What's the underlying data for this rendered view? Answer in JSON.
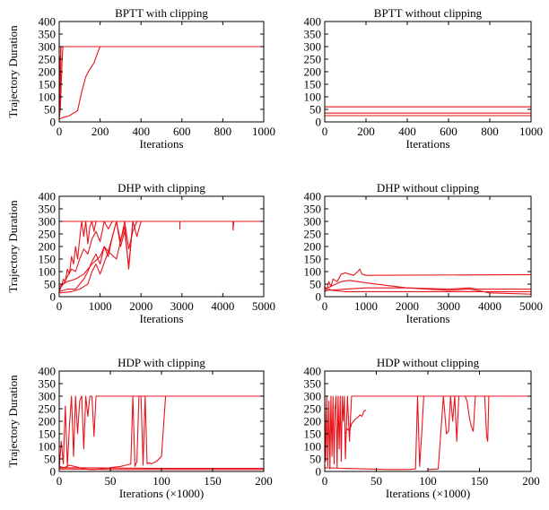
{
  "series_color": "#e8141b",
  "chart_data": [
    {
      "type": "line",
      "title": "BPTT with clipping",
      "xlabel": "Iterations",
      "ylabel": "Trajectory Duration",
      "xlim": [
        0,
        1000
      ],
      "ylim": [
        0,
        400
      ],
      "xticks": [
        "0",
        "200",
        "400",
        "600",
        "800",
        "1000"
      ],
      "yticks": [
        "0",
        "50",
        "100",
        "150",
        "200",
        "250",
        "300",
        "350",
        "400"
      ],
      "series": [
        {
          "x": [
            0,
            2,
            4,
            6,
            8,
            10,
            1000
          ],
          "y": [
            10,
            140,
            60,
            220,
            300,
            300,
            300
          ]
        },
        {
          "x": [
            0,
            4,
            6,
            8,
            10,
            12,
            1000
          ],
          "y": [
            20,
            260,
            100,
            300,
            300,
            300,
            300
          ]
        },
        {
          "x": [
            0,
            6,
            10,
            14,
            18,
            22,
            1000
          ],
          "y": [
            10,
            60,
            160,
            240,
            300,
            300,
            300
          ]
        },
        {
          "x": [
            0,
            10,
            50,
            90,
            110,
            130,
            150,
            170,
            190,
            200,
            1000
          ],
          "y": [
            10,
            15,
            25,
            45,
            120,
            180,
            210,
            235,
            280,
            300,
            300
          ]
        }
      ]
    },
    {
      "type": "line",
      "title": "BPTT without clipping",
      "xlabel": "Iterations",
      "ylabel": "",
      "xlim": [
        0,
        1000
      ],
      "ylim": [
        0,
        400
      ],
      "xticks": [
        "0",
        "200",
        "400",
        "600",
        "800",
        "1000"
      ],
      "yticks": [
        "0",
        "50",
        "100",
        "150",
        "200",
        "250",
        "300",
        "350",
        "400"
      ],
      "series": [
        {
          "x": [
            0,
            1000
          ],
          "y": [
            60,
            60
          ]
        },
        {
          "x": [
            0,
            1000
          ],
          "y": [
            35,
            35
          ]
        },
        {
          "x": [
            0,
            1000
          ],
          "y": [
            25,
            25
          ]
        }
      ]
    },
    {
      "type": "line",
      "title": "DHP with clipping",
      "xlabel": "Iterations",
      "ylabel": "Trajectory Duration",
      "xlim": [
        0,
        5000
      ],
      "ylim": [
        0,
        400
      ],
      "xticks": [
        "0",
        "1000",
        "2000",
        "3000",
        "4000",
        "5000"
      ],
      "yticks": [
        "0",
        "50",
        "100",
        "150",
        "200",
        "250",
        "300",
        "350",
        "400"
      ],
      "series": [
        {
          "x": [
            0,
            50,
            100,
            150,
            200,
            250,
            300,
            350,
            400,
            450,
            500,
            550,
            600,
            650,
            700,
            750,
            800,
            850,
            900,
            950,
            1000,
            5000
          ],
          "y": [
            20,
            40,
            70,
            60,
            110,
            90,
            160,
            130,
            200,
            150,
            230,
            300,
            240,
            300,
            210,
            280,
            300,
            260,
            300,
            300,
            300,
            300
          ]
        },
        {
          "x": [
            0,
            100,
            200,
            300,
            400,
            500,
            600,
            700,
            800,
            900,
            1000,
            1100,
            1200,
            1300,
            1400,
            5000
          ],
          "y": [
            30,
            50,
            80,
            110,
            100,
            150,
            190,
            170,
            230,
            260,
            220,
            300,
            270,
            300,
            300,
            300
          ]
        },
        {
          "x": [
            0,
            200,
            400,
            600,
            800,
            1000,
            1100,
            1200,
            1300,
            1400,
            1500,
            1600,
            1700,
            1800,
            1900,
            2000,
            2100,
            5000
          ],
          "y": [
            40,
            60,
            70,
            90,
            130,
            160,
            200,
            180,
            240,
            300,
            200,
            260,
            120,
            300,
            240,
            300,
            300,
            300
          ]
        },
        {
          "x": [
            0,
            200,
            400,
            500,
            600,
            700,
            800,
            900,
            1000,
            1100,
            1200,
            1300,
            1400,
            1500,
            1600,
            1700,
            1800,
            1900,
            5000
          ],
          "y": [
            20,
            30,
            30,
            50,
            70,
            100,
            140,
            170,
            130,
            200,
            160,
            240,
            300,
            220,
            280,
            110,
            300,
            300,
            300
          ]
        },
        {
          "x": [
            0,
            300,
            500,
            600,
            700,
            800,
            900,
            1000,
            1200,
            1400,
            1500,
            1600,
            1700,
            1800,
            1900,
            2000,
            5000
          ],
          "y": [
            15,
            20,
            30,
            40,
            50,
            100,
            130,
            90,
            180,
            150,
            220,
            300,
            190,
            260,
            300,
            300,
            300
          ]
        },
        {
          "x": [
            0,
            2950,
            2950,
            2950,
            5000
          ],
          "y": [
            300,
            300,
            270,
            300,
            300
          ]
        },
        {
          "x": [
            0,
            4250,
            4250,
            4270,
            5000
          ],
          "y": [
            300,
            300,
            265,
            300,
            300
          ]
        }
      ]
    },
    {
      "type": "line",
      "title": "DHP without clipping",
      "xlabel": "Iterations",
      "ylabel": "",
      "xlim": [
        0,
        5000
      ],
      "ylim": [
        0,
        400
      ],
      "xticks": [
        "0",
        "1000",
        "2000",
        "3000",
        "4000",
        "5000"
      ],
      "yticks": [
        "0",
        "50",
        "100",
        "150",
        "200",
        "250",
        "300",
        "350",
        "400"
      ],
      "series": [
        {
          "x": [
            0,
            50,
            100,
            150,
            200,
            300,
            400,
            500,
            600,
            700,
            800,
            850,
            900,
            1000,
            5000
          ],
          "y": [
            40,
            30,
            60,
            40,
            70,
            60,
            90,
            95,
            90,
            85,
            100,
            110,
            90,
            85,
            88
          ]
        },
        {
          "x": [
            0,
            200,
            400,
            600,
            800,
            1000,
            1500,
            2000,
            3000,
            3500,
            3700,
            4000,
            5000
          ],
          "y": [
            30,
            45,
            60,
            65,
            60,
            55,
            45,
            35,
            25,
            30,
            25,
            15,
            10
          ]
        },
        {
          "x": [
            0,
            500,
            1000,
            2000,
            3000,
            3500,
            3700,
            4000,
            5000
          ],
          "y": [
            25,
            30,
            35,
            35,
            30,
            35,
            30,
            30,
            30
          ]
        },
        {
          "x": [
            0,
            100,
            200,
            500,
            1000,
            3000,
            5000
          ],
          "y": [
            20,
            30,
            25,
            20,
            20,
            20,
            20
          ]
        }
      ]
    },
    {
      "type": "line",
      "title": "HDP with clipping",
      "xlabel": "Iterations (×1000)",
      "ylabel": "Trajectory Duration",
      "xlim": [
        0,
        200
      ],
      "ylim": [
        0,
        400
      ],
      "xticks": [
        "0",
        "50",
        "100",
        "150",
        "200"
      ],
      "yticks": [
        "0",
        "50",
        "100",
        "150",
        "200",
        "250",
        "300",
        "350",
        "400"
      ],
      "series": [
        {
          "x": [
            0,
            2,
            4,
            6,
            8,
            10,
            12,
            14,
            16,
            18,
            20,
            22,
            24,
            26,
            28,
            30,
            32,
            34,
            36,
            38,
            40,
            200
          ],
          "y": [
            10,
            120,
            30,
            260,
            20,
            180,
            300,
            60,
            300,
            150,
            280,
            300,
            90,
            300,
            220,
            300,
            300,
            140,
            300,
            300,
            300,
            300
          ]
        },
        {
          "x": [
            0,
            5,
            10,
            15,
            20,
            25,
            30,
            35,
            40,
            45,
            50,
            55,
            60,
            65,
            70,
            72,
            74,
            76,
            78,
            80,
            82,
            84,
            86,
            88,
            90,
            95,
            100,
            104,
            106,
            200
          ],
          "y": [
            20,
            15,
            25,
            20,
            15,
            10,
            8,
            8,
            10,
            12,
            15,
            18,
            20,
            25,
            30,
            300,
            20,
            40,
            300,
            300,
            25,
            300,
            30,
            35,
            30,
            40,
            60,
            300,
            300,
            300
          ]
        },
        {
          "x": [
            0,
            50,
            100,
            150,
            200
          ],
          "y": [
            10,
            8,
            8,
            8,
            8
          ]
        },
        {
          "x": [
            0,
            40,
            80,
            120,
            160,
            200
          ],
          "y": [
            15,
            14,
            13,
            12,
            12,
            12
          ]
        }
      ]
    },
    {
      "type": "line",
      "title": "HDP without clipping",
      "xlabel": "Iterations (×1000)",
      "ylabel": "",
      "xlim": [
        0,
        200
      ],
      "ylim": [
        0,
        400
      ],
      "xticks": [
        "0",
        "50",
        "100",
        "150",
        "200"
      ],
      "yticks": [
        "0",
        "50",
        "100",
        "150",
        "200",
        "250",
        "300",
        "350",
        "400"
      ],
      "series": [
        {
          "x": [
            0,
            1,
            2,
            3,
            4,
            5,
            6,
            7,
            8,
            9,
            10,
            11,
            12,
            13,
            14,
            15,
            16,
            17,
            18,
            19,
            20,
            22,
            24,
            26,
            28,
            30,
            200
          ],
          "y": [
            300,
            40,
            300,
            20,
            280,
            10,
            300,
            60,
            300,
            30,
            250,
            300,
            15,
            300,
            90,
            300,
            40,
            300,
            200,
            300,
            50,
            300,
            120,
            300,
            300,
            300,
            300
          ]
        },
        {
          "x": [
            20,
            22,
            24,
            26,
            28,
            30,
            32,
            34,
            36,
            38,
            40
          ],
          "y": [
            150,
            170,
            160,
            190,
            200,
            210,
            215,
            225,
            220,
            240,
            245
          ]
        },
        {
          "x": [
            0,
            20,
            40,
            60,
            80,
            88,
            90,
            92,
            94,
            96,
            98,
            200
          ],
          "y": [
            15,
            12,
            10,
            8,
            8,
            10,
            300,
            20,
            150,
            300,
            300,
            300
          ]
        },
        {
          "x": [
            100,
            110,
            115,
            118,
            120,
            122,
            124,
            126,
            128,
            130,
            132,
            200
          ],
          "y": [
            8,
            10,
            300,
            150,
            160,
            300,
            200,
            300,
            120,
            300,
            300,
            300
          ]
        },
        {
          "x": [
            136,
            138,
            140,
            142,
            144,
            146,
            148,
            150,
            155,
            157,
            158,
            159,
            160,
            200
          ],
          "y": [
            300,
            280,
            220,
            180,
            160,
            300,
            300,
            300,
            300,
            140,
            120,
            300,
            300,
            300
          ]
        }
      ]
    }
  ]
}
